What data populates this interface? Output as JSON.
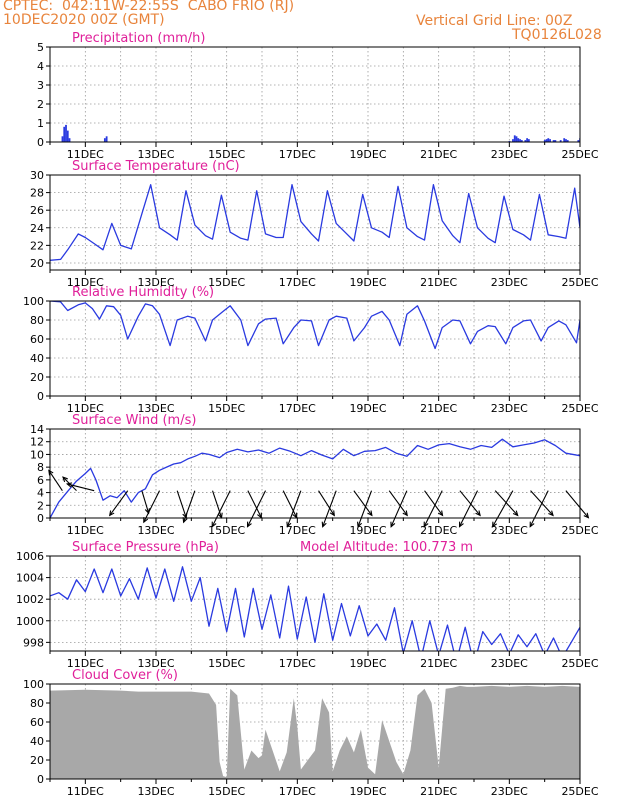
{
  "header": {
    "station": "CPTEC:  042:11W-22:55S  CABO FRIO (RJ)",
    "run": "10DEC2020 00Z (GMT)",
    "grid_note": "Vertical Grid Line: 00Z",
    "model_code": "TQ0126L028"
  },
  "colors": {
    "header": "#e8843c",
    "title": "#e0209a",
    "series": "#2a3ae0",
    "cloud": "#a8a8a8",
    "grid": "#9a9a9a",
    "frame": "#000000"
  },
  "date_ticks": [
    "11DEC",
    "13DEC",
    "15DEC",
    "17DEC",
    "19DEC",
    "21DEC",
    "23DEC",
    "25DEC"
  ],
  "chart_data": [
    {
      "id": "precip",
      "type": "bar",
      "title": "Precipitation (mm/h)",
      "x_range": [
        "10DEC2020 00Z",
        "25DEC2020 00Z"
      ],
      "ylim": [
        0,
        5
      ],
      "y_ticks": [
        0,
        1,
        2,
        3,
        4,
        5
      ],
      "grid": true,
      "series": [
        {
          "x": [
            0.35,
            0.4,
            0.45,
            0.5,
            0.55,
            1.55,
            1.6,
            13.0,
            13.1,
            13.15,
            13.2,
            13.25,
            13.3,
            13.35,
            13.45,
            13.5,
            13.55,
            14.0,
            14.05,
            14.1,
            14.15,
            14.25,
            14.3,
            14.45,
            14.55,
            14.6,
            14.65,
            14.95,
            15.0
          ],
          "y": [
            0.3,
            0.8,
            0.9,
            0.6,
            0.2,
            0.2,
            0.3,
            0.05,
            0.15,
            0.35,
            0.3,
            0.2,
            0.15,
            0.1,
            0.1,
            0.2,
            0.15,
            0.1,
            0.15,
            0.2,
            0.15,
            0.1,
            0.1,
            0.1,
            0.2,
            0.15,
            0.1,
            0.1,
            0.2
          ]
        }
      ]
    },
    {
      "id": "temp",
      "type": "line",
      "title": "Surface Temperature (nC)",
      "ylim": [
        19.2,
        30
      ],
      "y_ticks": [
        20,
        22,
        24,
        26,
        28,
        30
      ],
      "grid": true,
      "series": [
        {
          "x": [
            0,
            0.3,
            0.5,
            0.8,
            1.0,
            1.25,
            1.5,
            1.75,
            2.0,
            2.3,
            2.6,
            2.85,
            3.1,
            3.4,
            3.6,
            3.85,
            4.1,
            4.4,
            4.6,
            4.85,
            5.1,
            5.4,
            5.6,
            5.85,
            6.1,
            6.4,
            6.6,
            6.85,
            7.1,
            7.4,
            7.6,
            7.85,
            8.1,
            8.4,
            8.6,
            8.85,
            9.1,
            9.4,
            9.6,
            9.85,
            10.1,
            10.4,
            10.6,
            10.85,
            11.1,
            11.4,
            11.6,
            11.85,
            12.1,
            12.4,
            12.6,
            12.85,
            13.1,
            13.4,
            13.6,
            13.85,
            14.1,
            14.4,
            14.6,
            14.85,
            15.0
          ],
          "y": [
            20.3,
            20.4,
            21.5,
            23.3,
            22.9,
            22.2,
            21.5,
            24.5,
            22.0,
            21.6,
            25.6,
            28.9,
            24.0,
            23.2,
            22.6,
            28.2,
            24.3,
            23.1,
            22.7,
            27.7,
            23.5,
            22.8,
            22.6,
            28.2,
            23.3,
            22.9,
            22.9,
            28.9,
            24.7,
            23.3,
            22.5,
            28.2,
            24.5,
            23.3,
            22.5,
            27.8,
            24.0,
            23.5,
            22.9,
            28.7,
            24.0,
            23.0,
            22.6,
            28.9,
            24.8,
            23.1,
            22.3,
            27.9,
            24.0,
            22.8,
            22.3,
            27.6,
            23.8,
            23.2,
            22.6,
            27.8,
            23.2,
            23.0,
            22.8,
            28.5,
            24.0
          ]
        }
      ]
    },
    {
      "id": "rh",
      "type": "line",
      "title": "Relative Humidity (%)",
      "ylim": [
        0,
        100
      ],
      "y_ticks": [
        0,
        20,
        40,
        60,
        80,
        100
      ],
      "grid": true,
      "series": [
        {
          "x": [
            0,
            0.3,
            0.5,
            0.8,
            1.0,
            1.2,
            1.4,
            1.6,
            1.8,
            2.0,
            2.2,
            2.5,
            2.7,
            2.9,
            3.1,
            3.4,
            3.6,
            3.9,
            4.1,
            4.4,
            4.6,
            4.9,
            5.1,
            5.4,
            5.6,
            5.9,
            6.1,
            6.4,
            6.6,
            6.9,
            7.1,
            7.4,
            7.6,
            7.9,
            8.1,
            8.4,
            8.6,
            8.9,
            9.1,
            9.4,
            9.6,
            9.9,
            10.1,
            10.4,
            10.6,
            10.9,
            11.1,
            11.4,
            11.6,
            11.9,
            12.1,
            12.4,
            12.6,
            12.9,
            13.1,
            13.4,
            13.6,
            13.9,
            14.1,
            14.4,
            14.6,
            14.9,
            15.0
          ],
          "y": [
            100,
            99,
            90,
            96,
            98,
            92,
            81,
            95,
            94,
            85,
            60,
            84,
            97,
            95,
            86,
            53,
            80,
            84,
            82,
            58,
            80,
            89,
            95,
            80,
            53,
            76,
            81,
            82,
            55,
            72,
            80,
            79,
            53,
            80,
            84,
            82,
            58,
            72,
            84,
            89,
            80,
            53,
            86,
            95,
            79,
            50,
            72,
            80,
            79,
            55,
            68,
            74,
            73,
            55,
            72,
            79,
            80,
            58,
            72,
            79,
            75,
            56,
            80
          ]
        }
      ]
    },
    {
      "id": "wind",
      "type": "line",
      "title": "Surface Wind (m/s)",
      "ylim": [
        0,
        14
      ],
      "y_ticks": [
        0,
        2,
        4,
        6,
        8,
        10,
        12,
        14
      ],
      "grid": true,
      "series": [
        {
          "x": [
            0,
            0.25,
            0.5,
            0.75,
            1.0,
            1.15,
            1.3,
            1.5,
            1.7,
            1.9,
            2.1,
            2.3,
            2.5,
            2.7,
            2.9,
            3.1,
            3.3,
            3.5,
            3.7,
            3.9,
            4.1,
            4.3,
            4.5,
            4.8,
            5.0,
            5.3,
            5.6,
            5.9,
            6.2,
            6.5,
            6.8,
            7.1,
            7.4,
            7.7,
            8.0,
            8.3,
            8.6,
            8.9,
            9.2,
            9.5,
            9.8,
            10.1,
            10.4,
            10.7,
            11.0,
            11.3,
            11.6,
            11.9,
            12.2,
            12.5,
            12.8,
            13.1,
            13.4,
            13.7,
            14.0,
            14.3,
            14.6,
            15.0
          ],
          "y": [
            0,
            2.5,
            4.2,
            5.8,
            7.0,
            7.8,
            6.0,
            2.8,
            3.5,
            3.2,
            4.3,
            2.5,
            4.0,
            4.6,
            6.8,
            7.5,
            8.0,
            8.5,
            8.7,
            9.3,
            9.7,
            10.2,
            10.0,
            9.5,
            10.3,
            10.8,
            10.4,
            10.7,
            10.2,
            11.0,
            10.5,
            9.8,
            10.6,
            9.9,
            9.3,
            10.8,
            9.8,
            10.5,
            10.6,
            11.1,
            10.2,
            9.7,
            11.4,
            10.8,
            11.5,
            11.7,
            11.2,
            10.8,
            11.4,
            11.1,
            12.4,
            11.2,
            11.5,
            11.8,
            12.3,
            11.4,
            10.2,
            9.8
          ]
        }
      ],
      "vectors": {
        "x": [
          0.35,
          0.75,
          1.25,
          2.2,
          2.6,
          3.1,
          3.6,
          4.1,
          4.6,
          5.1,
          5.6,
          6.1,
          6.6,
          7.1,
          7.6,
          8.1,
          8.6,
          9.1,
          9.6,
          10.1,
          10.6,
          11.1,
          11.6,
          12.1,
          12.6,
          13.1,
          13.6,
          14.1,
          14.6
        ],
        "u": [
          -0.3,
          -0.3,
          -0.6,
          -0.4,
          0.15,
          -0.35,
          0.2,
          -0.25,
          0.2,
          -0.4,
          0.3,
          -0.4,
          0.3,
          -0.3,
          0.35,
          -0.3,
          0.4,
          -0.3,
          0.4,
          -0.35,
          0.4,
          -0.4,
          0.45,
          -0.4,
          0.5,
          -0.45,
          0.5,
          -0.4,
          0.5
        ],
        "v": [
          0.45,
          0.3,
          0.15,
          -0.55,
          -0.5,
          -0.7,
          -0.6,
          -0.7,
          -0.6,
          -0.8,
          -0.6,
          -0.8,
          -0.6,
          -0.8,
          -0.55,
          -0.8,
          -0.55,
          -0.8,
          -0.55,
          -0.8,
          -0.55,
          -0.8,
          -0.55,
          -0.8,
          -0.55,
          -0.8,
          -0.55,
          -0.8,
          -0.6
        ]
      }
    },
    {
      "id": "press",
      "type": "line",
      "title": "Surface Pressure (hPa)",
      "annotation": "Model Altitude: 100.773 m",
      "ylim": [
        997.2,
        1006
      ],
      "y_ticks": [
        998,
        1000,
        1002,
        1004,
        1006
      ],
      "grid": true,
      "series": [
        {
          "x": [
            0,
            0.25,
            0.5,
            0.75,
            1.0,
            1.25,
            1.5,
            1.75,
            2.0,
            2.25,
            2.5,
            2.75,
            3.0,
            3.25,
            3.5,
            3.75,
            4.0,
            4.25,
            4.5,
            4.75,
            5.0,
            5.25,
            5.5,
            5.75,
            6.0,
            6.25,
            6.5,
            6.75,
            7.0,
            7.25,
            7.5,
            7.75,
            8.0,
            8.25,
            8.5,
            8.75,
            9.0,
            9.25,
            9.5,
            9.75,
            10.0,
            10.25,
            10.5,
            10.75,
            11.0,
            11.25,
            11.5,
            11.75,
            12.0,
            12.25,
            12.5,
            12.75,
            13.0,
            13.25,
            13.5,
            13.75,
            14.0,
            14.25,
            14.5,
            14.75,
            15.0
          ],
          "y": [
            1002.3,
            1002.6,
            1002.0,
            1003.8,
            1002.7,
            1004.8,
            1002.6,
            1004.8,
            1002.3,
            1003.9,
            1002.0,
            1004.9,
            1002.1,
            1004.8,
            1001.8,
            1005.0,
            1001.8,
            1004.0,
            999.5,
            1003.0,
            999.0,
            1003.0,
            998.5,
            1003.0,
            999.2,
            1002.4,
            998.4,
            1003.2,
            998.3,
            1002.2,
            998.0,
            1002.5,
            998.2,
            1001.6,
            998.6,
            1001.4,
            998.6,
            999.7,
            998.2,
            1001.2,
            997.0,
            1000.0,
            996.5,
            1000.0,
            996.8,
            999.6,
            996.2,
            999.4,
            996.0,
            999.0,
            997.8,
            998.8,
            996.9,
            998.7,
            997.6,
            998.8,
            996.8,
            998.4,
            996.6,
            998.0,
            999.4
          ]
        }
      ]
    },
    {
      "id": "cloud",
      "type": "area",
      "title": "Cloud Cover (%)",
      "ylim": [
        0,
        100
      ],
      "y_ticks": [
        0,
        20,
        40,
        60,
        80,
        100
      ],
      "grid": true,
      "series": [
        {
          "x": [
            0,
            1.0,
            2.0,
            2.5,
            3.0,
            4.0,
            4.5,
            4.7,
            4.8,
            4.9,
            5.0,
            5.1,
            5.3,
            5.5,
            5.7,
            5.9,
            6.0,
            6.1,
            6.3,
            6.5,
            6.7,
            6.9,
            7.0,
            7.1,
            7.3,
            7.5,
            7.7,
            7.9,
            8.0,
            8.2,
            8.4,
            8.6,
            8.8,
            9.0,
            9.2,
            9.4,
            9.6,
            9.8,
            10.0,
            10.2,
            10.4,
            10.6,
            10.8,
            11.0,
            11.2,
            11.4,
            11.6,
            11.8,
            12.0,
            12.5,
            13.0,
            13.5,
            14.0,
            14.5,
            15.0
          ],
          "y": [
            93,
            94,
            93,
            92,
            92,
            92,
            90,
            78,
            18,
            3,
            2,
            95,
            88,
            10,
            30,
            22,
            25,
            52,
            30,
            8,
            28,
            85,
            55,
            10,
            20,
            30,
            85,
            70,
            8,
            30,
            45,
            28,
            52,
            12,
            5,
            62,
            40,
            18,
            5,
            30,
            88,
            95,
            80,
            12,
            95,
            96,
            98,
            97,
            97,
            98,
            97,
            98,
            97,
            98,
            97
          ]
        }
      ]
    }
  ]
}
